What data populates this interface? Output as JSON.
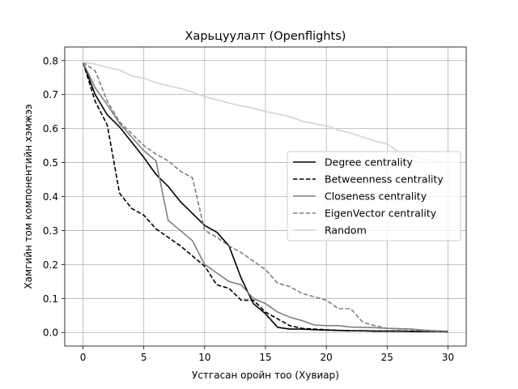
{
  "chart_data": {
    "type": "line",
    "title": "Харьцуулалт (Openflights)",
    "xlabel": "Устгасан оройн тоо (Хувиар)",
    "ylabel": "Хамгийн том компонентийн хэмжээ",
    "xlim": [
      -1.5,
      31.5
    ],
    "ylim": [
      -0.04,
      0.84
    ],
    "xticks": [
      0,
      5,
      10,
      15,
      20,
      25,
      30
    ],
    "yticks": [
      0.0,
      0.1,
      0.2,
      0.3,
      0.4,
      0.5,
      0.6,
      0.7,
      0.8
    ],
    "xtick_labels": [
      "0",
      "5",
      "10",
      "15",
      "20",
      "25",
      "30"
    ],
    "ytick_labels": [
      "0.0",
      "0.1",
      "0.2",
      "0.3",
      "0.4",
      "0.5",
      "0.6",
      "0.7",
      "0.8"
    ],
    "grid": true,
    "legend_position": "center-right",
    "series": [
      {
        "name": "Degree centrality",
        "color": "#000000",
        "dash": "solid",
        "x": [
          0,
          1,
          2,
          3,
          4,
          5,
          6,
          7,
          8,
          9,
          10,
          11,
          12,
          13,
          14,
          15,
          16,
          17,
          18,
          19,
          20,
          21,
          22,
          23,
          24,
          25,
          26,
          27,
          28,
          29,
          30
        ],
        "y": [
          0.795,
          0.7,
          0.64,
          0.605,
          0.56,
          0.515,
          0.465,
          0.43,
          0.385,
          0.35,
          0.315,
          0.295,
          0.255,
          0.16,
          0.085,
          0.055,
          0.015,
          0.01,
          0.01,
          0.008,
          0.007,
          0.006,
          0.005,
          0.005,
          0.004,
          0.004,
          0.004,
          0.003,
          0.003,
          0.003,
          0.002
        ]
      },
      {
        "name": "Betweenness centrality",
        "color": "#000000",
        "dash": "dashed",
        "x": [
          0,
          1,
          2,
          3,
          4,
          5,
          6,
          7,
          8,
          9,
          10,
          11,
          12,
          13,
          14,
          15,
          16,
          17,
          18,
          19,
          20,
          21,
          22,
          23,
          24,
          25,
          26,
          27,
          28,
          29,
          30
        ],
        "y": [
          0.795,
          0.68,
          0.61,
          0.41,
          0.365,
          0.345,
          0.305,
          0.28,
          0.255,
          0.225,
          0.195,
          0.14,
          0.13,
          0.095,
          0.095,
          0.06,
          0.04,
          0.02,
          0.012,
          0.01,
          0.008,
          0.006,
          0.005,
          0.005,
          0.004,
          0.004,
          0.004,
          0.003,
          0.003,
          0.003,
          0.002
        ]
      },
      {
        "name": "Closeness centrality",
        "color": "#808080",
        "dash": "solid",
        "x": [
          0,
          1,
          2,
          3,
          4,
          5,
          6,
          7,
          8,
          9,
          10,
          11,
          12,
          13,
          14,
          15,
          16,
          17,
          18,
          19,
          20,
          21,
          22,
          23,
          24,
          25,
          26,
          27,
          28,
          29,
          30
        ],
        "y": [
          0.795,
          0.72,
          0.67,
          0.615,
          0.575,
          0.535,
          0.505,
          0.33,
          0.3,
          0.27,
          0.2,
          0.175,
          0.15,
          0.14,
          0.1,
          0.085,
          0.06,
          0.045,
          0.035,
          0.022,
          0.02,
          0.02,
          0.016,
          0.015,
          0.014,
          0.012,
          0.011,
          0.01,
          0.007,
          0.005,
          0.004
        ]
      },
      {
        "name": "EigenVector centrality",
        "color": "#808080",
        "dash": "dashed",
        "x": [
          0,
          1,
          2,
          3,
          4,
          5,
          6,
          7,
          8,
          9,
          10,
          11,
          12,
          13,
          14,
          15,
          16,
          17,
          18,
          19,
          20,
          21,
          22,
          23,
          24,
          25,
          26,
          27,
          28,
          29,
          30
        ],
        "y": [
          0.795,
          0.77,
          0.68,
          0.62,
          0.585,
          0.55,
          0.525,
          0.505,
          0.475,
          0.455,
          0.3,
          0.28,
          0.255,
          0.235,
          0.21,
          0.185,
          0.145,
          0.135,
          0.115,
          0.105,
          0.095,
          0.07,
          0.07,
          0.03,
          0.02,
          0.012,
          0.01,
          0.008,
          0.005,
          0.004,
          0.003
        ]
      },
      {
        "name": "Random",
        "color": "#d3d3d3",
        "dash": "solid",
        "x": [
          0,
          1,
          2,
          3,
          4,
          5,
          6,
          7,
          8,
          9,
          10,
          11,
          12,
          13,
          14,
          15,
          16,
          17,
          18,
          19,
          20,
          21,
          22,
          23,
          24,
          25,
          26,
          27,
          28,
          29,
          30
        ],
        "y": [
          0.795,
          0.79,
          0.78,
          0.772,
          0.755,
          0.748,
          0.735,
          0.726,
          0.718,
          0.707,
          0.694,
          0.685,
          0.675,
          0.667,
          0.66,
          0.65,
          0.643,
          0.635,
          0.622,
          0.614,
          0.608,
          0.596,
          0.587,
          0.575,
          0.563,
          0.555,
          0.53,
          0.52,
          0.51,
          0.505,
          0.5
        ]
      }
    ]
  }
}
